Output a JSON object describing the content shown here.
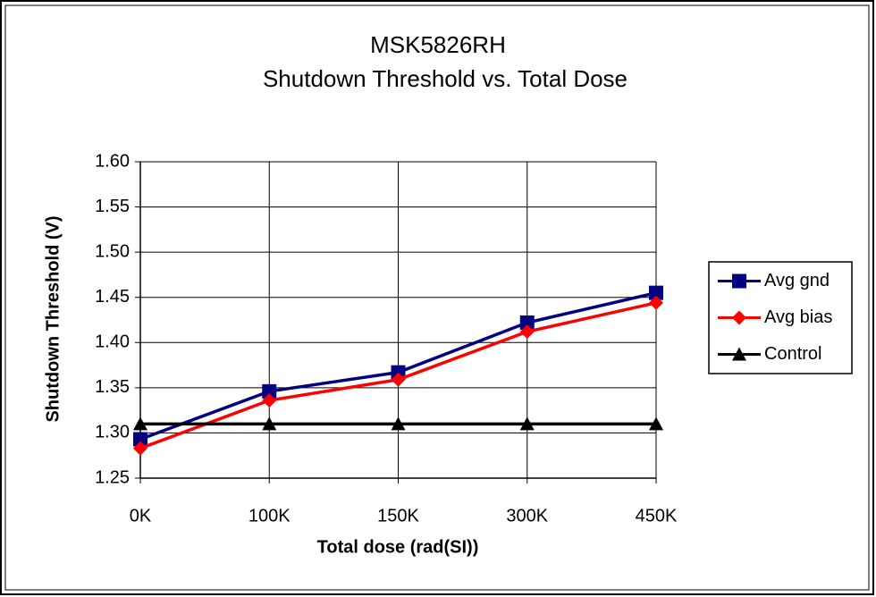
{
  "chart_data": {
    "type": "line",
    "title": "MSK5826RH",
    "subtitle": "Shutdown Threshold vs. Total Dose",
    "x_label": "Total dose (rad(SI))",
    "y_label": "Shutdown Threshold (V)",
    "categories": [
      "0K",
      "100K",
      "150K",
      "300K",
      "450K"
    ],
    "series": [
      {
        "name": "Avg gnd",
        "color": "#000080",
        "marker": "square",
        "values": [
          1.293,
          1.346,
          1.367,
          1.422,
          1.455
        ]
      },
      {
        "name": "Avg bias",
        "color": "#ff0000",
        "marker": "diamond",
        "values": [
          1.283,
          1.336,
          1.359,
          1.412,
          1.444
        ]
      },
      {
        "name": "Control",
        "color": "#000000",
        "marker": "triangle",
        "values": [
          1.31,
          1.31,
          1.31,
          1.31,
          1.31
        ]
      }
    ],
    "ylim": [
      1.25,
      1.6
    ],
    "yticks": [
      1.25,
      {
        "value": 1.3,
        "label": "1.30"
      },
      1.35,
      {
        "value": 1.4,
        "label": "1.40"
      },
      1.45,
      {
        "value": 1.5,
        "label": "1.50"
      },
      1.55,
      {
        "value": 1.6,
        "label": "1.60"
      }
    ],
    "grid": true,
    "legend": "right"
  }
}
